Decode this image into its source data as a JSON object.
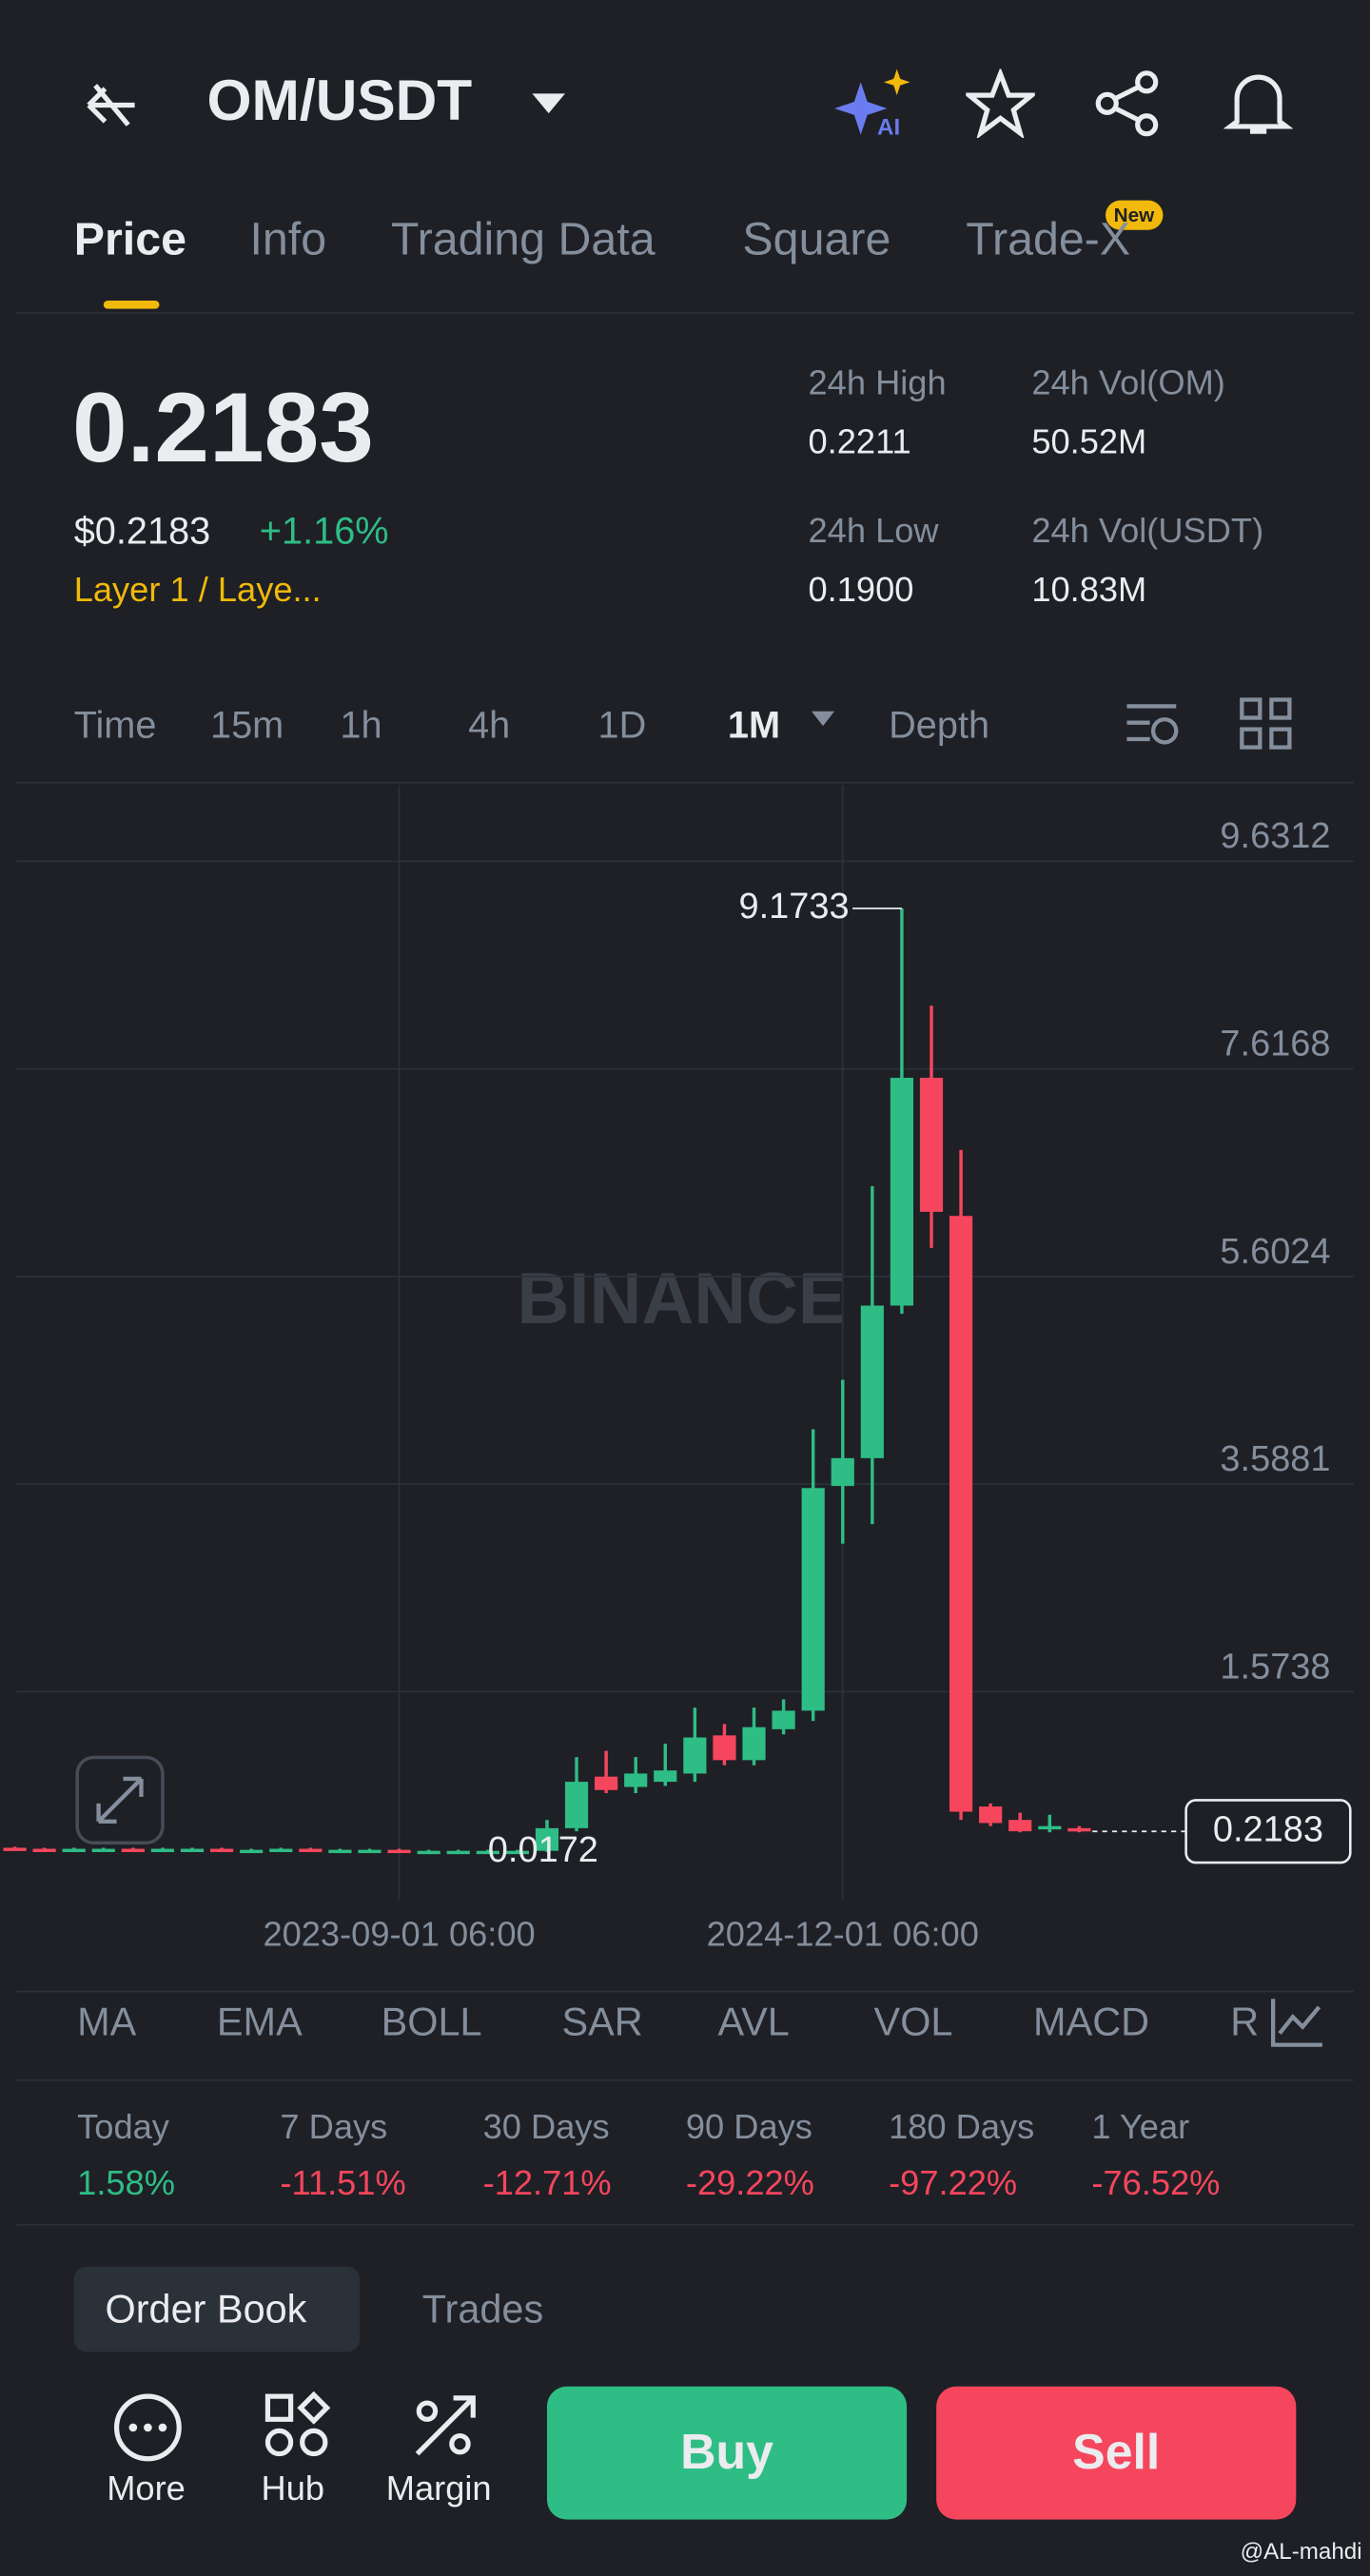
{
  "header": {
    "pair": "OM/USDT",
    "tabs": [
      "Price",
      "Info",
      "Trading Data",
      "Square",
      "Trade-X"
    ],
    "badge": "New"
  },
  "ticker": {
    "price": "0.2183",
    "usd_price": "$0.2183",
    "change": "+1.16%",
    "sector": "Layer 1 / Laye...",
    "stats": [
      {
        "label": "24h High",
        "value": "0.2211"
      },
      {
        "label": "24h Vol(OM)",
        "value": "50.52M"
      },
      {
        "label": "24h Low",
        "value": "0.1900"
      },
      {
        "label": "24h Vol(USDT)",
        "value": "10.83M"
      }
    ]
  },
  "intervals": [
    "Time",
    "15m",
    "1h",
    "4h",
    "1D",
    "1M",
    "Depth"
  ],
  "chart_data": {
    "type": "candlestick",
    "watermark": "BINANCE",
    "categories": [
      null,
      null,
      null,
      null,
      null,
      null,
      null,
      null,
      null,
      null,
      null,
      null,
      null,
      "2023-09-01 06:00",
      null,
      null,
      null,
      null,
      null,
      null,
      null,
      null,
      null,
      null,
      null,
      null,
      null,
      null,
      "2024-12-01 06:00",
      null,
      null,
      null,
      null,
      null,
      null,
      null,
      null
    ],
    "open": [
      0.06,
      0.05,
      0.04,
      0.05,
      0.05,
      0.04,
      0.05,
      0.05,
      0.04,
      0.04,
      0.05,
      0.04,
      0.04,
      0.04,
      0.03,
      0.03,
      0.03,
      0.03,
      0.03,
      0.25,
      0.75,
      0.65,
      0.7,
      0.78,
      1.15,
      0.91,
      1.21,
      1.39,
      3.57,
      3.84,
      5.32,
      7.53,
      6.19,
      0.46,
      0.33,
      0.24,
      0.25
    ],
    "high": [
      0.07,
      0.06,
      0.06,
      0.06,
      0.06,
      0.06,
      0.06,
      0.06,
      0.05,
      0.06,
      0.06,
      0.05,
      0.05,
      0.05,
      0.04,
      0.04,
      0.04,
      0.04,
      0.33,
      0.94,
      1.0,
      0.94,
      1.07,
      1.42,
      1.26,
      1.42,
      1.5,
      4.12,
      4.6,
      6.48,
      9.1733,
      8.23,
      6.83,
      0.49,
      0.4,
      0.38,
      0.27
    ],
    "low": [
      0.05,
      0.04,
      0.03,
      0.04,
      0.03,
      0.03,
      0.04,
      0.03,
      0.03,
      0.03,
      0.03,
      0.03,
      0.03,
      0.02,
      0.02,
      0.02,
      0.0172,
      0.02,
      0.02,
      0.22,
      0.59,
      0.59,
      0.66,
      0.7,
      0.86,
      0.86,
      1.16,
      1.29,
      3.01,
      3.2,
      5.24,
      5.88,
      0.33,
      0.27,
      0.21,
      0.21,
      0.21
    ],
    "close": [
      0.05,
      0.04,
      0.05,
      0.05,
      0.04,
      0.05,
      0.05,
      0.04,
      0.04,
      0.05,
      0.04,
      0.04,
      0.04,
      0.03,
      0.03,
      0.03,
      0.03,
      0.03,
      0.25,
      0.7,
      0.62,
      0.78,
      0.81,
      1.13,
      0.91,
      1.23,
      1.39,
      3.55,
      3.84,
      5.32,
      7.53,
      6.23,
      0.41,
      0.3,
      0.22,
      0.27,
      0.2183
    ],
    "up_color": "#2ebd85",
    "down_color": "#f6465d",
    "ylim": [
      -0.45,
      10.37
    ],
    "yticks": [
      9.6312,
      7.6168,
      5.6024,
      3.5881,
      1.5738
    ],
    "grid": true
  },
  "indicators": [
    "MA",
    "EMA",
    "BOLL",
    "SAR",
    "AVL",
    "VOL",
    "MACD",
    "R"
  ],
  "performance": [
    {
      "label": "Today",
      "value": "1.58%"
    },
    {
      "label": "7 Days",
      "value": "-11.51%"
    },
    {
      "label": "30 Days",
      "value": "-12.71%"
    },
    {
      "label": "90 Days",
      "value": "-29.22%"
    },
    {
      "label": "180 Days",
      "value": "-97.22%"
    },
    {
      "label": "1 Year",
      "value": "-76.52%"
    }
  ],
  "book_tabs": [
    "Order Book",
    "Trades"
  ],
  "bottom_bar": {
    "items": [
      "More",
      "Hub",
      "Margin"
    ],
    "buy": "Buy",
    "sell": "Sell",
    "credit": "@AL-mahdi"
  }
}
